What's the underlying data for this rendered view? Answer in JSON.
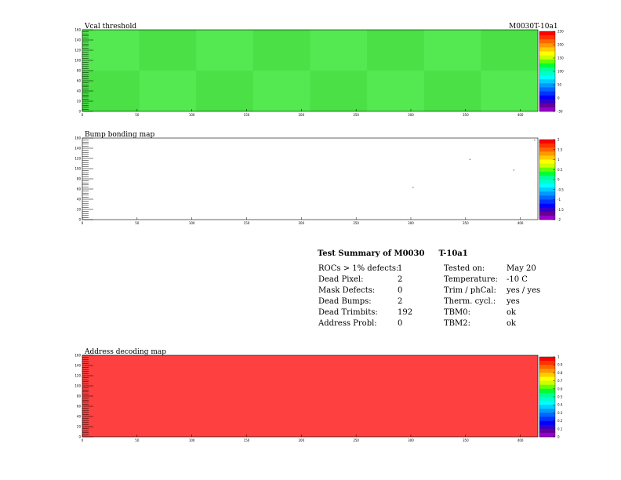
{
  "header": {
    "module_label": "M0030T-10a1"
  },
  "panels": {
    "vcal": {
      "title": "Vcal threshold"
    },
    "bump": {
      "title": "Bump bonding map"
    },
    "address": {
      "title": "Address decoding map"
    }
  },
  "summary": {
    "title": "Test Summary of M0030",
    "title_suffix": "T-10a1",
    "rows": [
      {
        "label": "ROCs > 1% defects:",
        "value": "1",
        "label2": "Tested on:",
        "value2": "May 20"
      },
      {
        "label": "Dead Pixel:",
        "value": "2",
        "label2": "Temperature:",
        "value2": "-10 C"
      },
      {
        "label": "Mask Defects:",
        "value": "0",
        "label2": "Trim / phCal:",
        "value2": "yes / yes"
      },
      {
        "label": "Dead Bumps:",
        "value": "2",
        "label2": "Therm. cycl.:",
        "value2": "yes"
      },
      {
        "label": "Dead Trimbits:",
        "value": "192",
        "label2": "TBM0:",
        "value2": "ok"
      },
      {
        "label": "Address Probl:",
        "value": "0",
        "label2": "TBM2:",
        "value2": "ok"
      }
    ]
  },
  "chart_data": [
    {
      "type": "heatmap",
      "title": "Vcal threshold",
      "xlim": [
        0,
        416
      ],
      "ylim": [
        0,
        160
      ],
      "x_ticks": [
        0,
        50,
        100,
        150,
        200,
        250,
        300,
        350,
        400
      ],
      "x_tick_labels": [
        "0",
        "50",
        "100",
        "150",
        "200",
        "250",
        "300",
        "350",
        "400"
      ],
      "y_ticks": [
        0,
        20,
        40,
        60,
        80,
        100,
        120,
        140,
        160
      ],
      "y_tick_labels": [
        "0",
        "20",
        "40",
        "60",
        "80",
        "100",
        "120",
        "140",
        "160"
      ],
      "fill_color": "#4ee84a",
      "colorbar": {
        "min": -50,
        "max": 250,
        "ticks": [
          250,
          200,
          150,
          100,
          50,
          0,
          -50
        ],
        "tick_labels": [
          "250",
          "200",
          "150",
          "100",
          "50",
          "0",
          "-50"
        ]
      }
    },
    {
      "type": "heatmap",
      "title": "Bump bonding map",
      "xlim": [
        0,
        416
      ],
      "ylim": [
        0,
        160
      ],
      "x_ticks": [
        0,
        50,
        100,
        150,
        200,
        250,
        300,
        350,
        400
      ],
      "x_tick_labels": [
        "0",
        "50",
        "100",
        "150",
        "200",
        "250",
        "300",
        "350",
        "400"
      ],
      "y_ticks": [
        0,
        20,
        40,
        60,
        80,
        100,
        120,
        140,
        160
      ],
      "y_tick_labels": [
        "0",
        "20",
        "40",
        "60",
        "80",
        "100",
        "120",
        "140",
        "160"
      ],
      "fill_color": "#ffffff",
      "points": [
        {
          "x": 302,
          "y": 63
        },
        {
          "x": 354,
          "y": 118
        },
        {
          "x": 394,
          "y": 97
        },
        {
          "x": 413,
          "y": 156
        }
      ],
      "colorbar": {
        "min": -2,
        "max": 2,
        "ticks": [
          2,
          1.5,
          1,
          0.5,
          0,
          -0.5,
          -1,
          -1.5,
          -2
        ],
        "tick_labels": [
          "2",
          "1.5",
          "1",
          "0.5",
          "0",
          "-0.5",
          "-1",
          "-1.5",
          "-2"
        ]
      }
    },
    {
      "type": "heatmap",
      "title": "Address decoding map",
      "xlim": [
        0,
        416
      ],
      "ylim": [
        0,
        160
      ],
      "x_ticks": [
        0,
        50,
        100,
        150,
        200,
        250,
        300,
        350,
        400
      ],
      "x_tick_labels": [
        "0",
        "50",
        "100",
        "150",
        "200",
        "250",
        "300",
        "350",
        "400"
      ],
      "y_ticks": [
        0,
        20,
        40,
        60,
        80,
        100,
        120,
        140,
        160
      ],
      "y_tick_labels": [
        "0",
        "20",
        "40",
        "60",
        "80",
        "100",
        "120",
        "140",
        "160"
      ],
      "fill_color": "#ff4040",
      "colorbar": {
        "min": 0,
        "max": 1,
        "ticks": [
          1,
          0.9,
          0.8,
          0.7,
          0.6,
          0.5,
          0.4,
          0.3,
          0.2,
          0.1,
          0
        ],
        "tick_labels": [
          "1",
          "0.9",
          "0.8",
          "0.7",
          "0.6",
          "0.5",
          "0.4",
          "0.3",
          "0.2",
          "0.1",
          "0"
        ]
      }
    }
  ]
}
